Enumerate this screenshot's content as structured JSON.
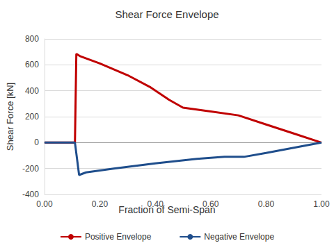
{
  "chart_data": {
    "type": "line",
    "title": "Shear Force Envelope",
    "x_label": "Fraction of Semi-Span",
    "y_label": "Shear Force [kN]",
    "xlim": [
      0,
      1
    ],
    "xticks": [
      {
        "value": 0,
        "label": "0.00"
      },
      {
        "value": 0.2,
        "label": "0.20"
      },
      {
        "value": 0.4,
        "label": "0.40"
      },
      {
        "value": 0.6,
        "label": "0.60"
      },
      {
        "value": 0.8,
        "label": "0.80"
      },
      {
        "value": 1,
        "label": "1.00"
      }
    ],
    "ylim": [
      -400,
      800
    ],
    "yticks": [
      -400,
      -200,
      0,
      200,
      400,
      600,
      800
    ],
    "grid": true,
    "legend": "bottom",
    "marker": "none",
    "line_style": "solid",
    "series": [
      {
        "name": "Positive Envelope",
        "color": "#c00000",
        "x": [
          0,
          0.11,
          0.115,
          0.13,
          0.2,
          0.3,
          0.38,
          0.45,
          0.5,
          0.6,
          0.7,
          0.8,
          0.9,
          1.0
        ],
        "values": [
          0,
          0,
          685,
          665,
          610,
          520,
          430,
          330,
          270,
          240,
          210,
          140,
          70,
          0
        ]
      },
      {
        "name": "Negative Envelope",
        "color": "#1f4e8c",
        "x": [
          0,
          0.11,
          0.125,
          0.15,
          0.25,
          0.4,
          0.55,
          0.65,
          0.72,
          0.8,
          0.9,
          1.0
        ],
        "values": [
          0,
          0,
          -250,
          -230,
          -200,
          -160,
          -125,
          -110,
          -110,
          -80,
          -40,
          0
        ]
      }
    ]
  }
}
